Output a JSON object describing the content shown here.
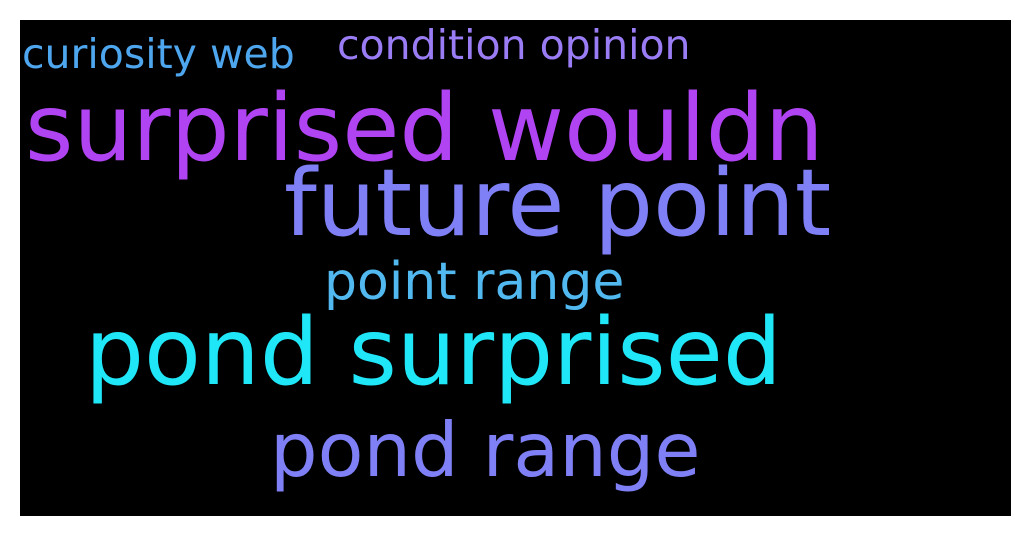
{
  "words": [
    {
      "id": "curiosity-web",
      "text": "curiosity web",
      "color": "#4ea6ee"
    },
    {
      "id": "condition-opinion",
      "text": "condition opinion",
      "color": "#9a7cf4"
    },
    {
      "id": "surprised-wouldn",
      "text": "surprised wouldn",
      "color": "#b043f2"
    },
    {
      "id": "future-point",
      "text": "future point",
      "color": "#7f80f6"
    },
    {
      "id": "point-range",
      "text": "point range",
      "color": "#51b9ef"
    },
    {
      "id": "pond-surprised",
      "text": "pond surprised",
      "color": "#20e7f7"
    },
    {
      "id": "pond-range",
      "text": "pond range",
      "color": "#7f80f6"
    }
  ]
}
